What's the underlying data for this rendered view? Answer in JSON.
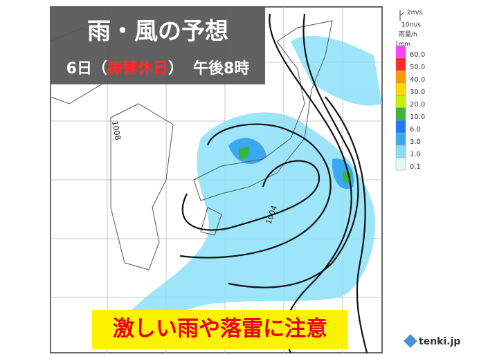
{
  "header": {
    "title": "雨・風の予想",
    "subtitle_parts": [
      "6日（",
      "振替休日",
      "）",
      "午後8時"
    ]
  },
  "map": {
    "isobar_labels": [
      "1004",
      "1008"
    ]
  },
  "wind_legend": {
    "small": "2m/s",
    "large": "10m/s"
  },
  "rain_legend": {
    "title": "雨量/h",
    "unit": "[mm",
    "levels": [
      {
        "label": "60.0",
        "color": "#ff40ff"
      },
      {
        "label": "50.0",
        "color": "#ff2828"
      },
      {
        "label": "40.0",
        "color": "#ff9900"
      },
      {
        "label": "30.0",
        "color": "#ffd800"
      },
      {
        "label": "20.0",
        "color": "#c8f000"
      },
      {
        "label": "10.0",
        "color": "#38b838"
      },
      {
        "label": "6.0",
        "color": "#1e78ff"
      },
      {
        "label": "3.0",
        "color": "#3ca8f0"
      },
      {
        "label": "1.0",
        "color": "#8cdcf8"
      },
      {
        "label": "0.1",
        "color": "#e4f8fc"
      }
    ]
  },
  "banner": {
    "text": "激しい雨や落雷に注意"
  },
  "logo": {
    "text": "tenki.jp"
  }
}
